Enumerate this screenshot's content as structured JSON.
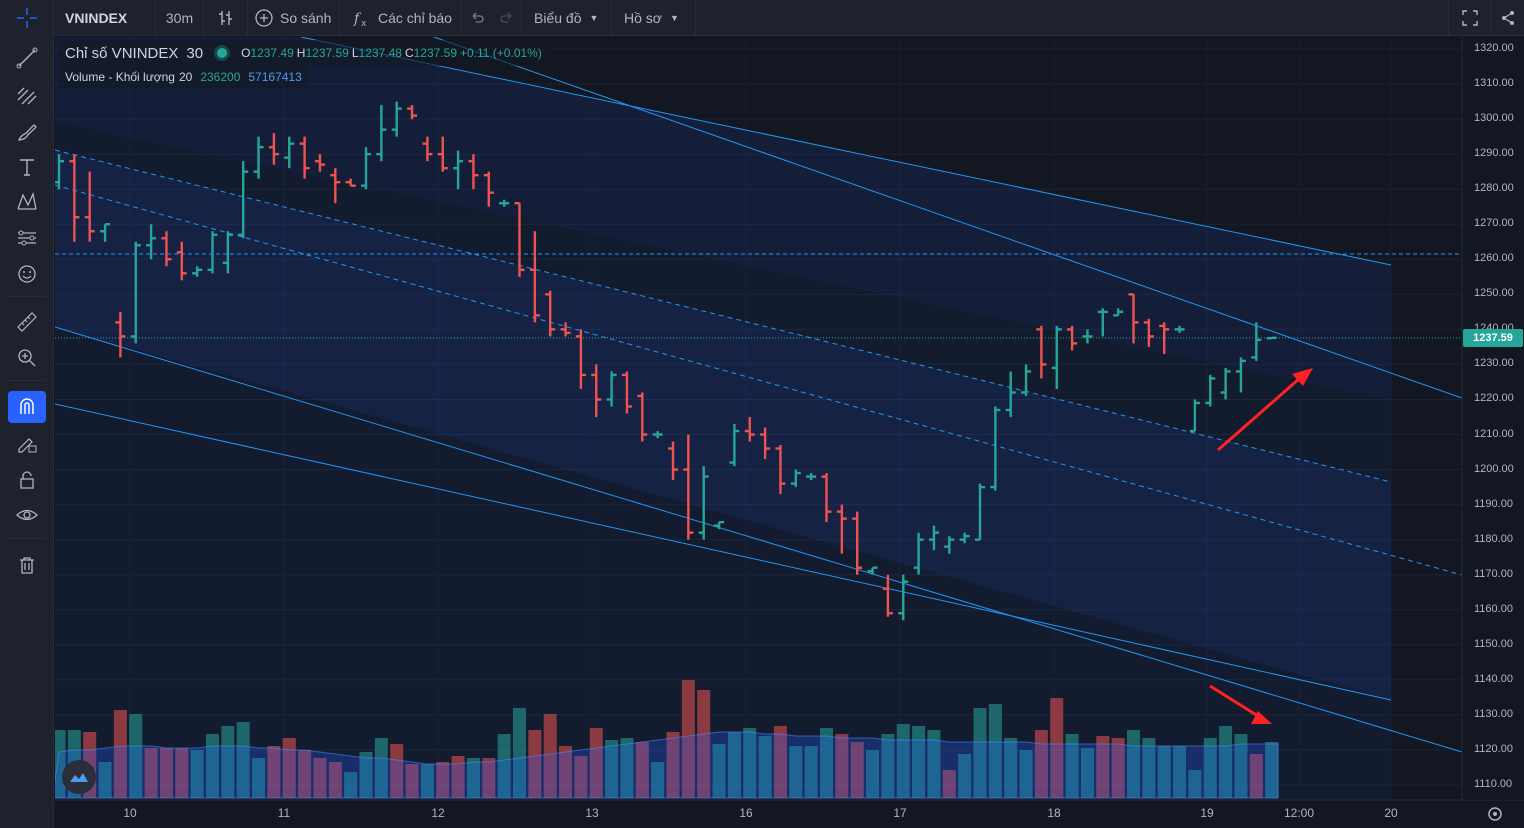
{
  "toolbar": {
    "symbol": "VNINDEX",
    "interval": "30m",
    "compare_label": "So sánh",
    "indicators_label": "Các chỉ báo",
    "layout_label": "Biểu đồ",
    "profile_label": "Hồ sơ",
    "icons": [
      "crosshair-icon",
      "bar-chart-type-icon",
      "plus-circle-icon",
      "fx-icon",
      "undo-icon",
      "redo-icon",
      "fullscreen-icon",
      "share-icon"
    ]
  },
  "left_toolbar": {
    "tools": [
      "crosshair-icon",
      "trend-line-icon",
      "fib-icon",
      "brush-icon",
      "text-icon",
      "pattern-icon",
      "forecast-icon",
      "emoji-icon",
      "ruler-icon",
      "zoom-icon",
      "magnet-icon",
      "lock-drawing-icon",
      "lock-icon",
      "eye-icon",
      "trash-icon"
    ],
    "active_tool": "magnet-icon"
  },
  "legend": {
    "title": "Chỉ số VNINDEX",
    "interval": "30",
    "o_label": "O",
    "o_value": "1237.49",
    "h_label": "H",
    "h_value": "1237.59",
    "l_label": "L",
    "l_value": "1237.48",
    "c_label": "C",
    "c_value": "1237.59",
    "change": "+0.11 (+0.01%)",
    "volume_title": "Volume - Khối lượng",
    "volume_length": "20",
    "volume_value": "236200",
    "volume_ma_value": "57167413"
  },
  "colors": {
    "up": "#26a69a",
    "down": "#ef5350",
    "line": "#2196f3",
    "background": "#131722",
    "annotation_arrow": "#ff2222"
  },
  "price_axis": {
    "ticks": [
      "1320.00",
      "1310.00",
      "1300.00",
      "1290.00",
      "1280.00",
      "1270.00",
      "1260.00",
      "1250.00",
      "1240.00",
      "1230.00",
      "1220.00",
      "1210.00",
      "1200.00",
      "1190.00",
      "1180.00",
      "1170.00",
      "1160.00",
      "1150.00",
      "1140.00",
      "1130.00",
      "1120.00",
      "1110.00"
    ],
    "last_price": "1237.59"
  },
  "time_axis": {
    "ticks": [
      "10",
      "11",
      "12",
      "13",
      "16",
      "17",
      "18",
      "19",
      "12:00",
      "20"
    ]
  },
  "chart_data": {
    "type": "bar",
    "symbol": "VNINDEX",
    "interval": "30m",
    "ylim": [
      1108,
      1322
    ],
    "horizontal_level": 1261.5,
    "ohlc": [
      [
        1282,
        1290,
        1280,
        1288
      ],
      [
        1288,
        1290,
        1265,
        1272
      ],
      [
        1272,
        1285,
        1265,
        1268
      ],
      [
        1268,
        1270,
        1265,
        1270
      ],
      [
        1242,
        1245,
        1232,
        1238
      ],
      [
        1238,
        1265,
        1236,
        1264
      ],
      [
        1264,
        1270,
        1260,
        1266
      ],
      [
        1266,
        1268,
        1258,
        1260
      ],
      [
        1262,
        1265,
        1254,
        1256
      ],
      [
        1256,
        1258,
        1255,
        1257
      ],
      [
        1257,
        1268,
        1256,
        1267
      ],
      [
        1259,
        1268,
        1256,
        1267
      ],
      [
        1267,
        1288,
        1266,
        1285
      ],
      [
        1285,
        1295,
        1283,
        1292
      ],
      [
        1292,
        1296,
        1287,
        1290
      ],
      [
        1289,
        1295,
        1286,
        1293
      ],
      [
        1293,
        1295,
        1283,
        1286
      ],
      [
        1288,
        1290,
        1285,
        1287
      ],
      [
        1284,
        1286,
        1276,
        1282
      ],
      [
        1282,
        1283,
        1281,
        1281
      ],
      [
        1281,
        1292,
        1280,
        1290
      ],
      [
        1290,
        1304,
        1288,
        1297
      ],
      [
        1297,
        1305,
        1295,
        1303
      ],
      [
        1303,
        1304,
        1300,
        1301
      ],
      [
        1293,
        1295,
        1288,
        1290
      ],
      [
        1290,
        1295,
        1285,
        1286
      ],
      [
        1286,
        1291,
        1280,
        1288
      ],
      [
        1288,
        1290,
        1280,
        1284
      ],
      [
        1284,
        1285,
        1275,
        1279
      ],
      [
        1276,
        1277,
        1275,
        1276
      ],
      [
        1276,
        1276,
        1255,
        1257
      ],
      [
        1257,
        1268,
        1242,
        1244
      ],
      [
        1250,
        1251,
        1238,
        1240
      ],
      [
        1240,
        1242,
        1238,
        1239
      ],
      [
        1238,
        1240,
        1223,
        1227
      ],
      [
        1227,
        1230,
        1215,
        1220
      ],
      [
        1220,
        1228,
        1218,
        1227
      ],
      [
        1227,
        1228,
        1216,
        1218
      ],
      [
        1221,
        1222,
        1208,
        1210
      ],
      [
        1210,
        1211,
        1209,
        1210
      ],
      [
        1206,
        1208,
        1197,
        1200
      ],
      [
        1200,
        1210,
        1180,
        1182
      ],
      [
        1182,
        1201,
        1180,
        1198
      ],
      [
        1184,
        1185,
        1183,
        1185
      ],
      [
        1202,
        1213,
        1201,
        1211
      ],
      [
        1211,
        1215,
        1208,
        1210
      ],
      [
        1210,
        1212,
        1203,
        1206
      ],
      [
        1206,
        1207,
        1193,
        1196
      ],
      [
        1196,
        1200,
        1195,
        1199
      ],
      [
        1198,
        1199,
        1197,
        1198
      ],
      [
        1198,
        1199,
        1185,
        1188
      ],
      [
        1188,
        1190,
        1176,
        1186
      ],
      [
        1186,
        1188,
        1170,
        1172
      ],
      [
        1171,
        1172,
        1170,
        1172
      ],
      [
        1166,
        1170,
        1158,
        1159
      ],
      [
        1159,
        1170,
        1157,
        1168
      ],
      [
        1172,
        1182,
        1170,
        1180
      ],
      [
        1180,
        1184,
        1177,
        1182
      ],
      [
        1178,
        1181,
        1176,
        1180
      ],
      [
        1180,
        1182,
        1179,
        1181
      ],
      [
        1180,
        1196,
        1180,
        1195
      ],
      [
        1195,
        1218,
        1194,
        1217
      ],
      [
        1217,
        1228,
        1215,
        1222
      ],
      [
        1222,
        1230,
        1221,
        1228
      ],
      [
        1240,
        1241,
        1226,
        1230
      ],
      [
        1229,
        1241,
        1223,
        1240
      ],
      [
        1240,
        1241,
        1234,
        1236
      ],
      [
        1238,
        1240,
        1236,
        1238
      ],
      [
        1245,
        1246,
        1238,
        1245
      ],
      [
        1244,
        1246,
        1244,
        1245
      ],
      [
        1250,
        1250,
        1236,
        1242
      ],
      [
        1242,
        1243,
        1235,
        1238
      ],
      [
        1241,
        1242,
        1233,
        1240
      ],
      [
        1240,
        1241,
        1239,
        1240
      ],
      [
        1211,
        1220,
        1211,
        1219
      ],
      [
        1219,
        1227,
        1218,
        1226
      ],
      [
        1222,
        1229,
        1220,
        1228
      ],
      [
        1228,
        1232,
        1222,
        1231
      ],
      [
        1232,
        1242,
        1231,
        1237
      ],
      [
        1237.49,
        1237.59,
        1237.48,
        1237.59
      ]
    ],
    "volume_max": 1,
    "volume": [
      [
        0.34,
        1
      ],
      [
        0.34,
        1
      ],
      [
        0.33,
        0
      ],
      [
        0.18,
        1
      ],
      [
        0.44,
        0
      ],
      [
        0.42,
        1
      ],
      [
        0.25,
        0
      ],
      [
        0.25,
        0
      ],
      [
        0.25,
        0
      ],
      [
        0.24,
        1
      ],
      [
        0.32,
        1
      ],
      [
        0.36,
        1
      ],
      [
        0.38,
        1
      ],
      [
        0.2,
        1
      ],
      [
        0.26,
        0
      ],
      [
        0.3,
        0
      ],
      [
        0.24,
        0
      ],
      [
        0.2,
        0
      ],
      [
        0.18,
        0
      ],
      [
        0.13,
        1
      ],
      [
        0.23,
        1
      ],
      [
        0.3,
        1
      ],
      [
        0.27,
        0
      ],
      [
        0.17,
        0
      ],
      [
        0.17,
        1
      ],
      [
        0.18,
        0
      ],
      [
        0.21,
        0
      ],
      [
        0.2,
        1
      ],
      [
        0.2,
        0
      ],
      [
        0.32,
        1
      ],
      [
        0.45,
        1
      ],
      [
        0.34,
        0
      ],
      [
        0.42,
        0
      ],
      [
        0.26,
        0
      ],
      [
        0.21,
        0
      ],
      [
        0.35,
        0
      ],
      [
        0.29,
        1
      ],
      [
        0.3,
        1
      ],
      [
        0.28,
        0
      ],
      [
        0.18,
        1
      ],
      [
        0.33,
        0
      ],
      [
        0.59,
        0
      ],
      [
        0.54,
        0
      ],
      [
        0.27,
        1
      ],
      [
        0.33,
        1
      ],
      [
        0.35,
        1
      ],
      [
        0.31,
        1
      ],
      [
        0.36,
        0
      ],
      [
        0.26,
        1
      ],
      [
        0.26,
        1
      ],
      [
        0.35,
        1
      ],
      [
        0.32,
        0
      ],
      [
        0.28,
        0
      ],
      [
        0.24,
        1
      ],
      [
        0.32,
        1
      ],
      [
        0.37,
        1
      ],
      [
        0.36,
        1
      ],
      [
        0.34,
        1
      ],
      [
        0.14,
        0
      ],
      [
        0.22,
        1
      ],
      [
        0.45,
        1
      ],
      [
        0.47,
        1
      ],
      [
        0.3,
        1
      ],
      [
        0.24,
        1
      ],
      [
        0.34,
        0
      ],
      [
        0.5,
        0
      ],
      [
        0.32,
        1
      ],
      [
        0.25,
        1
      ],
      [
        0.31,
        0
      ],
      [
        0.3,
        0
      ],
      [
        0.34,
        1
      ],
      [
        0.3,
        1
      ],
      [
        0.26,
        1
      ],
      [
        0.26,
        1
      ],
      [
        0.14,
        1
      ],
      [
        0.3,
        1
      ],
      [
        0.36,
        1
      ],
      [
        0.32,
        1
      ],
      [
        0.22,
        0
      ],
      [
        0.28,
        1
      ]
    ],
    "volume_ma": [
      0.23,
      0.24,
      0.24,
      0.25,
      0.26,
      0.26,
      0.26,
      0.25,
      0.25,
      0.25,
      0.26,
      0.26,
      0.26,
      0.25,
      0.25,
      0.24,
      0.24,
      0.23,
      0.22,
      0.21,
      0.2,
      0.2,
      0.19,
      0.18,
      0.17,
      0.17,
      0.17,
      0.18,
      0.18,
      0.19,
      0.2,
      0.21,
      0.22,
      0.23,
      0.24,
      0.25,
      0.26,
      0.27,
      0.28,
      0.29,
      0.3,
      0.31,
      0.32,
      0.33,
      0.33,
      0.33,
      0.32,
      0.32,
      0.31,
      0.31,
      0.31,
      0.3,
      0.3,
      0.3,
      0.29,
      0.29,
      0.29,
      0.29,
      0.28,
      0.28,
      0.28,
      0.28,
      0.28,
      0.28,
      0.27,
      0.27,
      0.27,
      0.27,
      0.27,
      0.27,
      0.26,
      0.26,
      0.26,
      0.26,
      0.26,
      0.26,
      0.26,
      0.27,
      0.27,
      0.27
    ]
  }
}
